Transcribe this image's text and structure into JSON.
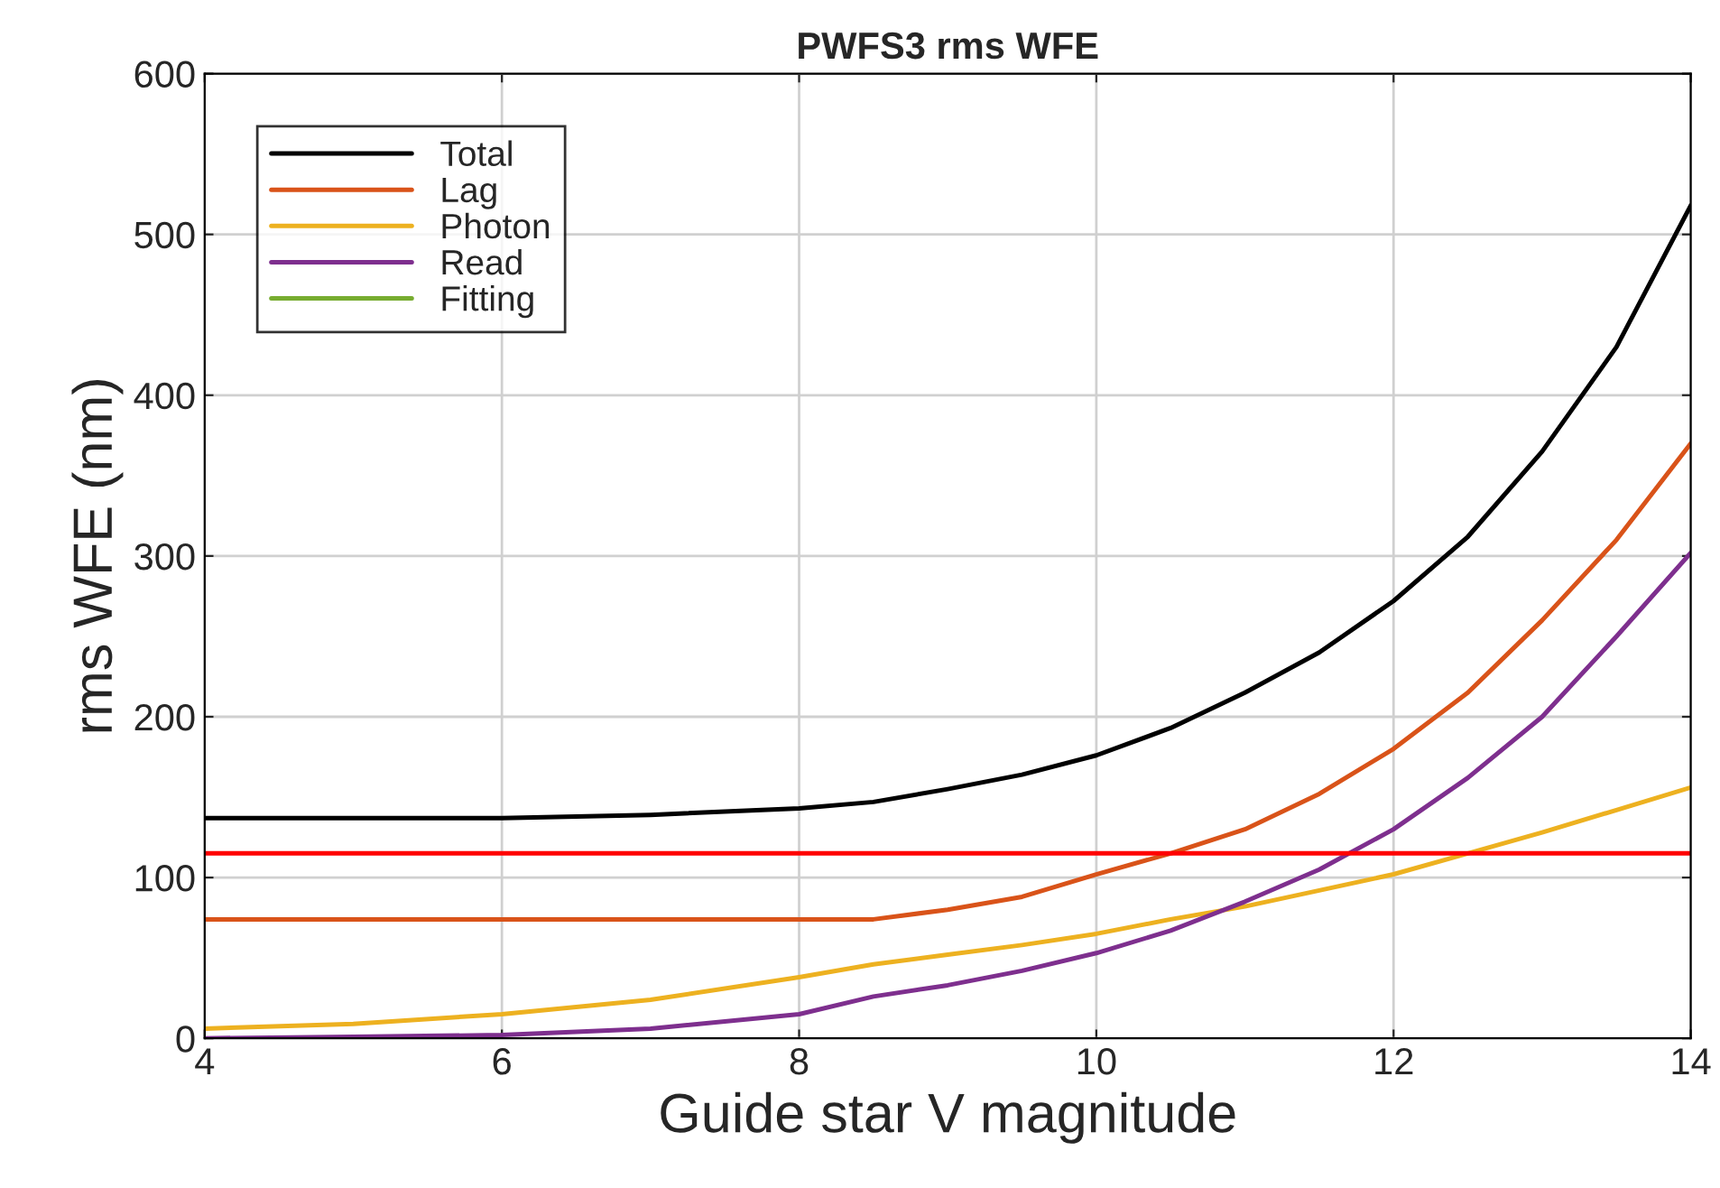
{
  "chart_data": {
    "type": "line",
    "title": "PWFS3 rms WFE",
    "xlabel": "Guide star V magnitude",
    "ylabel": "rms WFE (nm)",
    "xlim": [
      4,
      14
    ],
    "ylim": [
      0,
      600
    ],
    "xticks": [
      4,
      6,
      8,
      10,
      12,
      14
    ],
    "yticks": [
      0,
      100,
      200,
      300,
      400,
      500,
      600
    ],
    "grid": true,
    "legend": "top left",
    "line_style": "solid",
    "marker": "none",
    "x": [
      4,
      5,
      6,
      7,
      8,
      8.5,
      9,
      9.5,
      10,
      10.5,
      11,
      11.5,
      12,
      12.5,
      13,
      13.5,
      14
    ],
    "series": [
      {
        "name": "Total",
        "color": "#000000",
        "values": [
          137,
          137,
          137,
          139,
          143,
          147,
          155,
          164,
          176,
          193,
          215,
          240,
          272,
          312,
          365,
          430,
          518
        ]
      },
      {
        "name": "Lag",
        "color": "#d95319",
        "values": [
          74,
          74,
          74,
          74,
          74,
          74,
          80,
          88,
          102,
          115,
          130,
          152,
          180,
          215,
          260,
          310,
          370
        ]
      },
      {
        "name": "Photon",
        "color": "#edb120",
        "values": [
          6,
          9,
          15,
          24,
          38,
          46,
          52,
          58,
          65,
          74,
          82,
          92,
          102,
          115,
          128,
          142,
          156
        ]
      },
      {
        "name": "Read",
        "color": "#7e2f8e",
        "values": [
          0,
          1,
          2,
          6,
          15,
          26,
          33,
          42,
          53,
          67,
          85,
          105,
          130,
          162,
          200,
          250,
          302
        ]
      },
      {
        "name": "Fitting",
        "color": "#77ac30",
        "values": [
          null,
          null,
          null,
          null,
          null,
          null,
          null,
          null,
          null,
          null,
          null,
          null,
          null,
          null,
          null,
          null,
          null
        ]
      }
    ],
    "ref_lines": [
      {
        "axis": "y",
        "value": 115,
        "color": "#ff0000",
        "line_style": "solid"
      }
    ]
  }
}
